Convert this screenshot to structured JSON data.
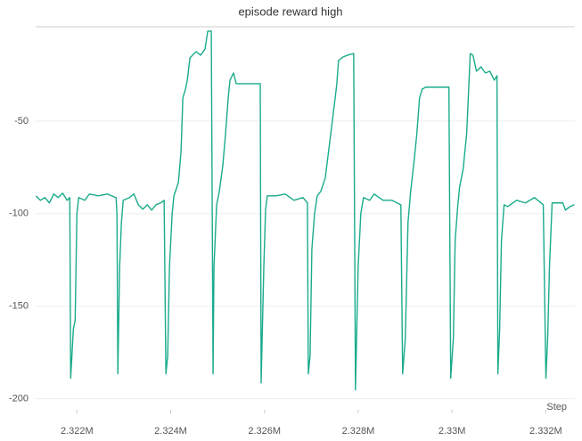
{
  "chart_data": {
    "type": "line",
    "title": "episode reward high",
    "x_label": "Step",
    "color": "#1aab8b",
    "grid": true,
    "xlim": [
      2321120,
      2332620
    ],
    "ylim": [
      -205,
      0
    ],
    "xticks": [
      {
        "value": 2322000,
        "label": "2.322M"
      },
      {
        "value": 2324000,
        "label": "2.324M"
      },
      {
        "value": 2326000,
        "label": "2.326M"
      },
      {
        "value": 2328000,
        "label": "2.328M"
      },
      {
        "value": 2330000,
        "label": "2.33M"
      },
      {
        "value": 2332000,
        "label": "2.332M"
      }
    ],
    "yticks": [
      -50,
      -100,
      -150,
      -200
    ],
    "x": [
      2321127,
      2321222,
      2321317,
      2321412,
      2321507,
      2321601,
      2321696,
      2321791,
      2321848,
      2321867,
      2321924,
      2321962,
      2322000,
      2322038,
      2322171,
      2322266,
      2322456,
      2322645,
      2322835,
      2322854,
      2322873,
      2322911,
      2322949,
      2322987,
      2323120,
      2323215,
      2323310,
      2323405,
      2323499,
      2323594,
      2323689,
      2323784,
      2323860,
      2323898,
      2323936,
      2323974,
      2324031,
      2324069,
      2324164,
      2324221,
      2324259,
      2324316,
      2324354,
      2324411,
      2324467,
      2324543,
      2324638,
      2324733,
      2324790,
      2324866,
      2324904,
      2324923,
      2324980,
      2325037,
      2325113,
      2325170,
      2325227,
      2325265,
      2325340,
      2325397,
      2325682,
      2325910,
      2325929,
      2325986,
      2326024,
      2326062,
      2326252,
      2326441,
      2326631,
      2326821,
      2326916,
      2326935,
      2326973,
      2327011,
      2327068,
      2327125,
      2327201,
      2327296,
      2327391,
      2327485,
      2327542,
      2327580,
      2327675,
      2327770,
      2327903,
      2327941,
      2327998,
      2328055,
      2328112,
      2328245,
      2328339,
      2328529,
      2328719,
      2328909,
      2328947,
      2329004,
      2329061,
      2329118,
      2329193,
      2329250,
      2329307,
      2329364,
      2329440,
      2329934,
      2329972,
      2330029,
      2330067,
      2330124,
      2330162,
      2330237,
      2330313,
      2330389,
      2330446,
      2330522,
      2330617,
      2330712,
      2330807,
      2330902,
      2330959,
      2330978,
      2331016,
      2331054,
      2331111,
      2331186,
      2331376,
      2331566,
      2331756,
      2331946,
      2332002,
      2332040,
      2332078,
      2332135,
      2332363,
      2332420,
      2332515,
      2332610
    ],
    "values": [
      -90.4,
      -92.8,
      -91.3,
      -94.2,
      -89.4,
      -91.3,
      -88.9,
      -92.8,
      -91.3,
      -188.9,
      -162.5,
      -157.7,
      -100,
      -91.3,
      -92.8,
      -89.4,
      -90.4,
      -89.4,
      -91.3,
      -100,
      -186.5,
      -128.9,
      -104.8,
      -92.8,
      -91.3,
      -89.4,
      -95.2,
      -97.6,
      -95.2,
      -98.1,
      -95.2,
      -94.2,
      -92.8,
      -186.5,
      -176.9,
      -128.9,
      -100,
      -90.4,
      -83.2,
      -66.3,
      -37.5,
      -32.7,
      -27.9,
      -15.9,
      -14.4,
      -12.5,
      -14.4,
      -11.1,
      -1.4,
      -1.4,
      -186.5,
      -128.9,
      -95.2,
      -88,
      -73.6,
      -56.7,
      -37.5,
      -27.9,
      -24,
      -29.8,
      -29.8,
      -29.8,
      -191.4,
      -128.9,
      -97.6,
      -90.4,
      -90.4,
      -89.4,
      -92.8,
      -91.3,
      -94.2,
      -186.5,
      -176.9,
      -119.2,
      -100,
      -90.4,
      -88,
      -80.8,
      -61.5,
      -42.3,
      -30.3,
      -17.3,
      -15.4,
      -14.4,
      -13.5,
      -195.2,
      -128.9,
      -100,
      -91.3,
      -92.8,
      -89.4,
      -92.8,
      -92.8,
      -95.2,
      -186.5,
      -167.3,
      -104.8,
      -88,
      -71.2,
      -56.7,
      -37.5,
      -32.7,
      -31.7,
      -31.7,
      -188.9,
      -167.3,
      -114.4,
      -95.2,
      -85.6,
      -76,
      -56.7,
      -13.5,
      -14.4,
      -23.1,
      -20.7,
      -24,
      -23.1,
      -27.9,
      -25.5,
      -186.5,
      -162.5,
      -114.4,
      -95.2,
      -96.2,
      -92.8,
      -94.2,
      -91.3,
      -95.2,
      -188.9,
      -167.3,
      -128.9,
      -94.2,
      -94.2,
      -98.1,
      -96.2,
      -95.2
    ]
  }
}
